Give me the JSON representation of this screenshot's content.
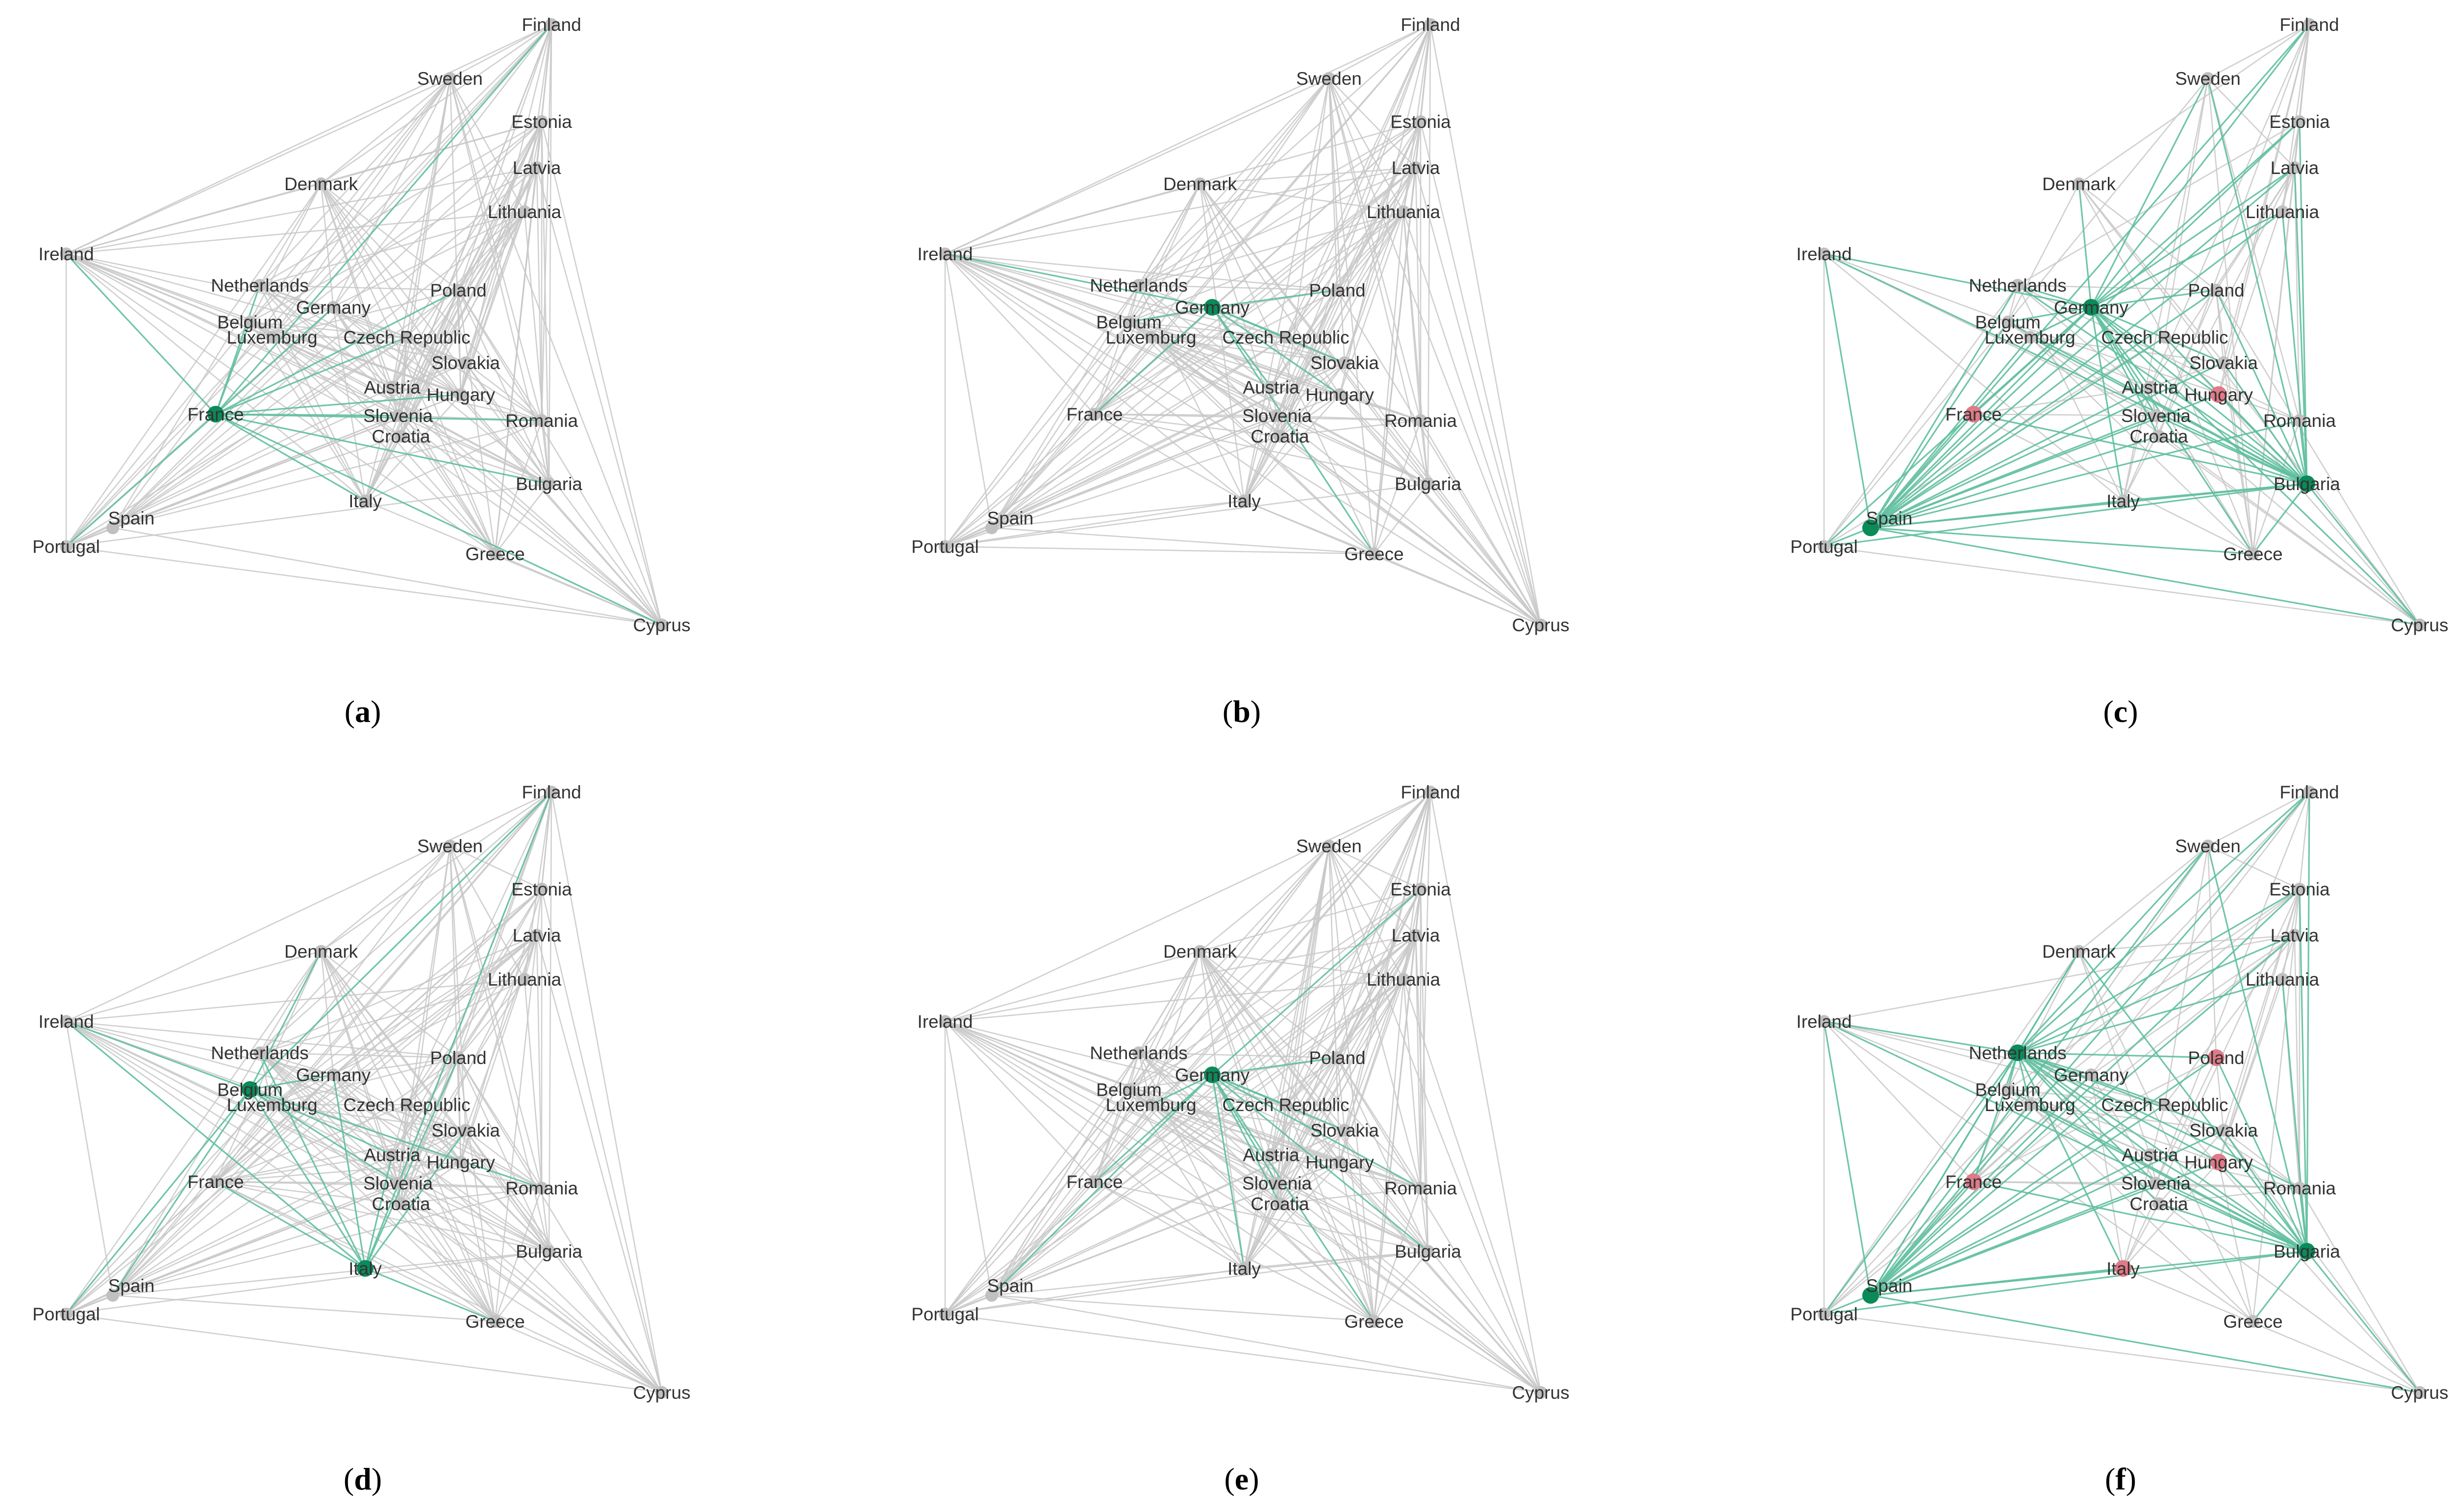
{
  "figure": {
    "colors": {
      "edge_default": "#c8c8c8",
      "edge_highlight": "#5fbf9f",
      "node_default": "#c0c0c0",
      "node_highlight": "#0b8a5a",
      "node_negative": "#e07a88",
      "label": "#333333"
    },
    "countries": [
      "Finland",
      "Sweden",
      "Estonia",
      "Latvia",
      "Lithuania",
      "Denmark",
      "Ireland",
      "Netherlands",
      "Germany",
      "Poland",
      "Belgium",
      "Luxemburg",
      "Czech Republic",
      "Slovakia",
      "Austria",
      "Hungary",
      "France",
      "Slovenia",
      "Romania",
      "Croatia",
      "Bulgaria",
      "Italy",
      "Spain",
      "Portugal",
      "Greece",
      "Cyprus"
    ],
    "panels": [
      {
        "id": "a",
        "caption": "a",
        "highlight": [
          "France"
        ],
        "negative": []
      },
      {
        "id": "b",
        "caption": "b",
        "highlight": [
          "Germany"
        ],
        "negative": []
      },
      {
        "id": "c",
        "caption": "c",
        "highlight": [
          "Germany",
          "Spain",
          "Bulgaria"
        ],
        "negative": [
          "France",
          "Hungary"
        ]
      },
      {
        "id": "d",
        "caption": "d",
        "highlight": [
          "Belgium",
          "Italy"
        ],
        "negative": []
      },
      {
        "id": "e",
        "caption": "e",
        "highlight": [
          "Germany"
        ],
        "negative": []
      },
      {
        "id": "f",
        "caption": "f",
        "highlight": [
          "Netherlands",
          "Spain",
          "Bulgaria"
        ],
        "negative": [
          "Poland",
          "France",
          "Hungary",
          "Italy"
        ]
      }
    ]
  }
}
